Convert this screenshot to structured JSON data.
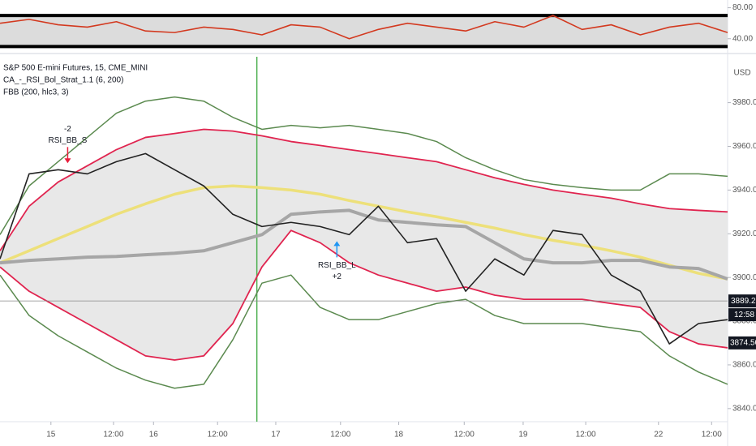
{
  "chart_data": [
    {
      "type": "line",
      "x": [
        0,
        4,
        8,
        12,
        16,
        20,
        24,
        28,
        32,
        36,
        40,
        44,
        48,
        52,
        56,
        60,
        64,
        68,
        72,
        76,
        80,
        84,
        88,
        92,
        96,
        100
      ],
      "xlim": [
        0,
        100
      ],
      "ylim": [
        23,
        90
      ],
      "yticks": [
        {
          "value": 80,
          "label": "80.00"
        },
        {
          "value": 40,
          "label": "40.00"
        }
      ],
      "levels": [
        70,
        30
      ],
      "series": [
        {
          "color": "#d3391f",
          "values": [
            60,
            65,
            58,
            55,
            62,
            50,
            48,
            55,
            52,
            45,
            58,
            55,
            40,
            52,
            60,
            55,
            50,
            62,
            55,
            70,
            52,
            58,
            45,
            55,
            60,
            48
          ]
        }
      ]
    },
    {
      "type": "line",
      "legend_lines": [
        "S&P 500 E-mini Futures, 15, CME_MINI",
        "CA_-_RSI_Bol_Strat_1.1 (6, 200)",
        "FBB (200, hlc3, 3)"
      ],
      "currency": "USD",
      "x": [
        0,
        4,
        8,
        12,
        16,
        20,
        24,
        28,
        32,
        36,
        40,
        44,
        48,
        52,
        56,
        60,
        64,
        68,
        72,
        76,
        80,
        84,
        88,
        92,
        96,
        100
      ],
      "xlim": [
        0,
        100
      ],
      "xticks": [
        {
          "value": 7,
          "label": "15"
        },
        {
          "value": 15.6,
          "label": "12:00"
        },
        {
          "value": 21.1,
          "label": "16"
        },
        {
          "value": 29.9,
          "label": "12:00"
        },
        {
          "value": 37.9,
          "label": "17"
        },
        {
          "value": 46.8,
          "label": "12:00"
        },
        {
          "value": 54.8,
          "label": "18"
        },
        {
          "value": 63.8,
          "label": "12:00"
        },
        {
          "value": 71.9,
          "label": "19"
        },
        {
          "value": 80.5,
          "label": "12:00"
        },
        {
          "value": 90.5,
          "label": "22"
        },
        {
          "value": 97.8,
          "label": "12:00"
        }
      ],
      "ylim": [
        3834,
        4001
      ],
      "yticks": [
        {
          "value": 3840,
          "label": "3840.00"
        },
        {
          "value": 3860,
          "label": "3860.00"
        },
        {
          "value": 3880,
          "label": "3880.00"
        },
        {
          "value": 3900,
          "label": "3900.00"
        },
        {
          "value": 3920,
          "label": "3920.00"
        },
        {
          "value": 3940,
          "label": "3940.00"
        },
        {
          "value": 3960,
          "label": "3960.00"
        },
        {
          "value": 3980,
          "label": "3980.00"
        }
      ],
      "vline_x": 35.3,
      "last_price": 3889.25,
      "countdown": "12:58",
      "low_price": {
        "value": 3874.5,
        "label": "3874.50"
      },
      "signals": [
        {
          "x": 9.3,
          "text": "RSI_BB_S",
          "qty": "-2",
          "color": "#e91e3c",
          "side": "short"
        },
        {
          "x": 46.3,
          "text": "RSI_BB_L",
          "qty": "+2",
          "color": "#2196f3",
          "side": "long"
        }
      ],
      "series": [
        {
          "color": "#5b8a4f",
          "values": [
            3919.6,
            3941.9,
            3953,
            3964.1,
            3975.2,
            3980.7,
            3982.6,
            3980.7,
            3973.3,
            3967.8,
            3969.6,
            3968.5,
            3969.6,
            3967.8,
            3965.9,
            3962.2,
            3954.8,
            3949.3,
            3944.8,
            3942.6,
            3941.1,
            3940,
            3940,
            3947.4,
            3947.4,
            3946.3
          ]
        },
        {
          "color": "#e0244f",
          "values": [
            3912.2,
            3932.6,
            3943.7,
            3951.1,
            3958.5,
            3964.1,
            3965.9,
            3967.8,
            3967,
            3964.8,
            3962.2,
            3960.4,
            3958.5,
            3956.7,
            3954.8,
            3953,
            3949.3,
            3945.6,
            3942.6,
            3940,
            3938.1,
            3936.3,
            3933.7,
            3931.5,
            3930.7,
            3930
          ]
        },
        {
          "color": "#ede07a",
          "values": [
            3906.7,
            3912.2,
            3917.8,
            3923.3,
            3928.9,
            3933.7,
            3938.1,
            3941.1,
            3941.9,
            3941.1,
            3940,
            3938.1,
            3935.2,
            3932.6,
            3930,
            3927.8,
            3925.2,
            3922.6,
            3919.6,
            3917,
            3914.8,
            3912.2,
            3909.3,
            3905.6,
            3901.9,
            3899.3
          ]
        },
        {
          "color": "#a6a6a6",
          "values": [
            3906.7,
            3907.8,
            3908.5,
            3909.3,
            3909.6,
            3910.4,
            3911.1,
            3912.2,
            3915.9,
            3919.6,
            3928.9,
            3930,
            3930.7,
            3926.3,
            3925.2,
            3924.1,
            3923.3,
            3915.9,
            3908.5,
            3906.7,
            3906.7,
            3907.8,
            3907.8,
            3904.8,
            3904.1,
            3899.3
          ]
        },
        {
          "color": "#e0244f",
          "values": [
            3904.8,
            3893.7,
            3886.3,
            3878.9,
            3871.5,
            3864.1,
            3862.2,
            3864.1,
            3878.9,
            3904.8,
            3921.5,
            3915.9,
            3906.7,
            3901.1,
            3897.4,
            3893.7,
            3895.6,
            3891.9,
            3890,
            3890,
            3890,
            3888.1,
            3886.3,
            3875.2,
            3869.6,
            3867.8
          ]
        },
        {
          "color": "#5b8a4f",
          "values": [
            3901.1,
            3882.6,
            3873.3,
            3865.9,
            3858.5,
            3853,
            3849.3,
            3851.1,
            3871.5,
            3897.4,
            3901.1,
            3886.3,
            3880.7,
            3880.7,
            3884.4,
            3888.1,
            3890,
            3882.6,
            3878.9,
            3878.9,
            3878.9,
            3877,
            3875.2,
            3864.1,
            3856.7,
            3851.1
          ]
        },
        {
          "color": "#222222",
          "values": [
            3908.5,
            3947.4,
            3949.3,
            3947.4,
            3953,
            3956.7,
            3949.3,
            3941.9,
            3928.9,
            3923.3,
            3925.2,
            3923.3,
            3919.6,
            3932.6,
            3915.9,
            3917.8,
            3893.7,
            3908.5,
            3901.1,
            3921.5,
            3919.6,
            3901.1,
            3893.7,
            3869.6,
            3878.9,
            3880.7
          ]
        }
      ]
    }
  ]
}
